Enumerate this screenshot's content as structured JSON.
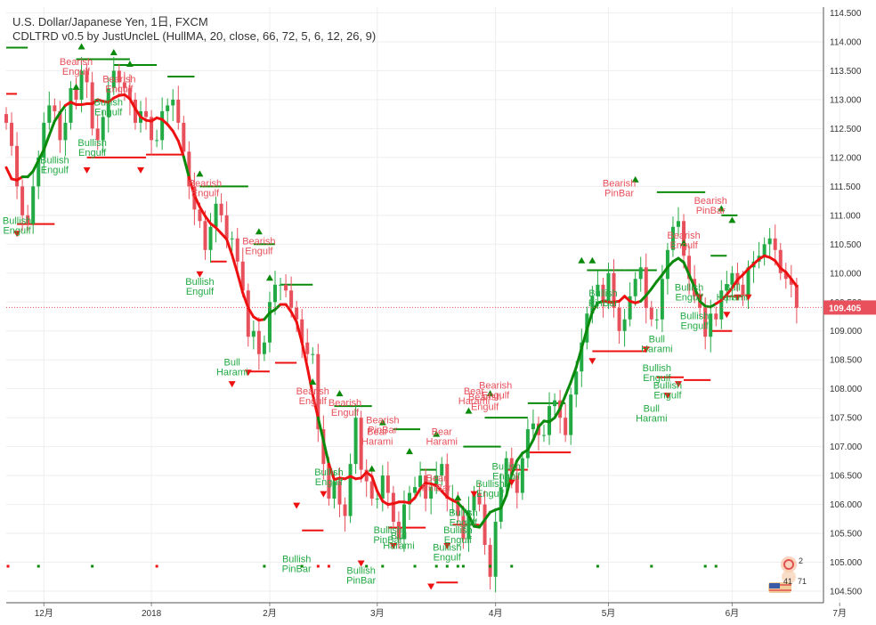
{
  "header": {
    "title": "U.S. Dollar/Japanese Yen, 1日, FXCM",
    "indicator": "CDLTRD v0.5 by JustUncleL (HullMA, 20, close, 66, 72, 5, 6, 12, 26, 9)"
  },
  "colors": {
    "bull": "#22aa44",
    "bear": "#e8505b",
    "hma_up": "#0a8a0a",
    "hma_down": "#ee1111",
    "price_line": "#e8505b",
    "grid": "#eeeeee",
    "axis_text": "#333333"
  },
  "chart_data": {
    "type": "candlestick",
    "symbol": "USDJPY",
    "timeframe": "1日",
    "source": "FXCM",
    "ylim": [
      104.3,
      114.6
    ],
    "y_ticks": [
      "104.500",
      "105.000",
      "105.500",
      "106.000",
      "106.500",
      "107.000",
      "107.500",
      "108.000",
      "108.500",
      "109.000",
      "109.500",
      "110.000",
      "110.500",
      "111.000",
      "111.500",
      "112.000",
      "112.500",
      "113.000",
      "113.500",
      "114.000",
      "114.500"
    ],
    "x_ticks": [
      {
        "label": "12月",
        "index": 7
      },
      {
        "label": "2018",
        "index": 27
      },
      {
        "label": "2月",
        "index": 49
      },
      {
        "label": "3月",
        "index": 69
      },
      {
        "label": "4月",
        "index": 91
      },
      {
        "label": "5月",
        "index": 112
      },
      {
        "label": "6月",
        "index": 135
      },
      {
        "label": "7月",
        "index": 155
      }
    ],
    "last_price": "109.405",
    "closes": [
      112.6,
      112.2,
      111.5,
      111.0,
      110.85,
      111.5,
      112.0,
      112.6,
      112.9,
      112.8,
      112.3,
      112.6,
      113.2,
      113.0,
      113.5,
      113.3,
      112.5,
      112.3,
      112.7,
      113.2,
      113.5,
      113.3,
      113.2,
      113.0,
      112.6,
      112.8,
      112.7,
      112.3,
      112.3,
      112.8,
      112.9,
      113.0,
      112.6,
      112.1,
      111.5,
      111.1,
      110.9,
      110.4,
      110.8,
      111.2,
      111.0,
      110.6,
      110.6,
      110.2,
      109.7,
      108.9,
      109.0,
      108.6,
      108.8,
      109.5,
      109.8,
      109.8,
      109.7,
      109.4,
      109.2,
      108.8,
      108.6,
      108.6,
      107.3,
      106.7,
      106.1,
      106.4,
      106.0,
      105.8,
      106.7,
      107.5,
      106.6,
      106.4,
      106.1,
      106.1,
      106.5,
      106.2,
      105.7,
      105.4,
      106.0,
      106.2,
      106.3,
      106.5,
      106.1,
      106.3,
      106.5,
      106.7,
      106.1,
      106.1,
      105.8,
      105.4,
      105.9,
      106.2,
      106.0,
      105.3,
      104.75,
      105.7,
      106.3,
      106.8,
      106.5,
      106.2,
      106.8,
      107.3,
      107.4,
      107.2,
      107.2,
      107.7,
      107.8,
      107.5,
      107.2,
      107.9,
      108.3,
      108.8,
      109.3,
      109.6,
      109.8,
      109.5,
      110.0,
      109.4,
      109.0,
      109.2,
      109.6,
      109.9,
      110.1,
      109.4,
      109.2,
      109.2,
      109.9,
      110.4,
      110.8,
      110.9,
      110.3,
      109.9,
      109.6,
      109.4,
      108.9,
      109.3,
      109.2,
      109.7,
      109.8,
      110.0,
      109.8,
      109.6,
      110.1,
      110.2,
      110.3,
      110.5,
      110.6,
      110.4,
      110.0,
      109.9,
      109.8,
      109.4
    ],
    "hma_up_segments": [
      [
        3,
        10
      ],
      [
        33,
        33
      ],
      [
        48,
        50
      ],
      [
        58,
        59
      ],
      [
        84,
        110
      ],
      [
        118,
        131
      ]
    ],
    "patterns": [
      {
        "label": [
          "Bullish",
          "Engulf"
        ],
        "index": 2,
        "price": 110.85,
        "side": "bull"
      },
      {
        "label": [
          "Bearish",
          "Engulf"
        ],
        "index": 13,
        "price": 113.6,
        "side": "bear"
      },
      {
        "label": [
          "Bullish",
          "Engulf"
        ],
        "index": 9,
        "price": 111.9,
        "side": "bull"
      },
      {
        "label": [
          "Bullish",
          "Engulf"
        ],
        "index": 19,
        "price": 112.9,
        "side": "bull"
      },
      {
        "label": [
          "Bullish",
          "Engulf"
        ],
        "index": 16,
        "price": 112.2,
        "side": "bull"
      },
      {
        "label": [
          "Bearish",
          "Engulf"
        ],
        "index": 21,
        "price": 113.3,
        "side": "bear"
      },
      {
        "label": [
          "Bearish",
          "Engulf"
        ],
        "index": 37,
        "price": 111.5,
        "side": "bear"
      },
      {
        "label": [
          "Bullish",
          "Engulf"
        ],
        "index": 36,
        "price": 109.8,
        "side": "bull"
      },
      {
        "label": [
          "Bearish",
          "Engulf"
        ],
        "index": 47,
        "price": 110.5,
        "side": "bear"
      },
      {
        "label": [
          "Bull",
          "Harami"
        ],
        "index": 42,
        "price": 108.4,
        "side": "bull"
      },
      {
        "label": [
          "Bearish",
          "Engulf"
        ],
        "index": 57,
        "price": 107.9,
        "side": "bear"
      },
      {
        "label": [
          "Bearish",
          "Engulf"
        ],
        "index": 63,
        "price": 107.7,
        "side": "bear"
      },
      {
        "label": [
          "Bullish",
          "Engulf"
        ],
        "index": 60,
        "price": 106.5,
        "side": "bull"
      },
      {
        "label": [
          "Bullish",
          "PinBar"
        ],
        "index": 54,
        "price": 105.0,
        "side": "bull"
      },
      {
        "label": [
          "Bearish",
          "PinBar"
        ],
        "index": 70,
        "price": 107.4,
        "side": "bear"
      },
      {
        "label": [
          "Bear",
          "Harami"
        ],
        "index": 69,
        "price": 107.2,
        "side": "bear"
      },
      {
        "label": [
          "Bullish",
          "PinBar"
        ],
        "index": 66,
        "price": 104.8,
        "side": "bull"
      },
      {
        "label": [
          "Bull",
          "Harami"
        ],
        "index": 73,
        "price": 105.4,
        "side": "bull"
      },
      {
        "label": [
          "Bullish",
          "PinBar"
        ],
        "index": 71,
        "price": 105.5,
        "side": "bull"
      },
      {
        "label": [
          "Bear",
          "Harami"
        ],
        "index": 81,
        "price": 107.2,
        "side": "bear"
      },
      {
        "label": [
          "Bear",
          "PinBar"
        ],
        "index": 80,
        "price": 106.4,
        "side": "bear"
      },
      {
        "label": [
          "Bullish",
          "Engulf"
        ],
        "index": 82,
        "price": 105.2,
        "side": "bull"
      },
      {
        "label": [
          "Bullish",
          "Engulf"
        ],
        "index": 84,
        "price": 105.5,
        "side": "bull"
      },
      {
        "label": [
          "Bullish",
          "Engulf"
        ],
        "index": 85,
        "price": 105.8,
        "side": "bull"
      },
      {
        "label": [
          "Bear",
          "Harami"
        ],
        "index": 87,
        "price": 107.9,
        "side": "bear"
      },
      {
        "label": [
          "Bearish",
          "Engulf"
        ],
        "index": 91,
        "price": 108.0,
        "side": "bear"
      },
      {
        "label": [
          "Bearish",
          "Engulf"
        ],
        "index": 89,
        "price": 107.8,
        "side": "bear"
      },
      {
        "label": [
          "Bullish",
          "Engulf"
        ],
        "index": 90,
        "price": 106.3,
        "side": "bull"
      },
      {
        "label": [
          "Bullish",
          "Engulf"
        ],
        "index": 93,
        "price": 106.6,
        "side": "bull"
      },
      {
        "label": [
          "Bearish",
          "PinBar"
        ],
        "index": 114,
        "price": 111.5,
        "side": "bear"
      },
      {
        "label": [
          "Bullish",
          "PinBar"
        ],
        "index": 111,
        "price": 109.6,
        "side": "bull"
      },
      {
        "label": [
          "Bearish",
          "Engulf"
        ],
        "index": 126,
        "price": 110.6,
        "side": "bear"
      },
      {
        "label": [
          "Bearish",
          "PinBar"
        ],
        "index": 131,
        "price": 111.2,
        "side": "bear"
      },
      {
        "label": [
          "Bullish",
          "Engulf"
        ],
        "index": 127,
        "price": 109.7,
        "side": "bull"
      },
      {
        "label": [
          "Bullish",
          "Engulf"
        ],
        "index": 128,
        "price": 109.2,
        "side": "bull"
      },
      {
        "label": [
          "Bullish",
          "Engulf"
        ],
        "index": 123,
        "price": 108.0,
        "side": "bull"
      },
      {
        "label": [
          "Bullish",
          "Engulf"
        ],
        "index": 121,
        "price": 108.3,
        "side": "bull"
      },
      {
        "label": [
          "Bull",
          "Harami"
        ],
        "index": 121,
        "price": 108.8,
        "side": "bull"
      },
      {
        "label": [
          "Bull",
          "Harami"
        ],
        "index": 120,
        "price": 107.6,
        "side": "bull"
      },
      {
        "label": [
          "Bull",
          "Harami"
        ],
        "index": 135,
        "price": 109.7,
        "side": "bull"
      }
    ],
    "up_markers": [
      [
        13,
        113.2
      ],
      [
        14,
        113.9
      ],
      [
        20,
        113.8
      ],
      [
        23,
        113.6
      ],
      [
        36,
        111.7
      ],
      [
        47,
        110.7
      ],
      [
        49,
        109.9
      ],
      [
        57,
        108.1
      ],
      [
        62,
        107.9
      ],
      [
        68,
        106.6
      ],
      [
        70,
        107.4
      ],
      [
        75,
        106.9
      ],
      [
        80,
        107.2
      ],
      [
        84,
        106.1
      ],
      [
        86,
        107.6
      ],
      [
        90,
        107.9
      ],
      [
        107,
        110.2
      ],
      [
        109,
        110.2
      ],
      [
        117,
        111.6
      ],
      [
        126,
        110.5
      ],
      [
        133,
        111.1
      ],
      [
        135,
        110.9
      ]
    ],
    "down_markers": [
      [
        2,
        110.7
      ],
      [
        15,
        111.8
      ],
      [
        25,
        111.8
      ],
      [
        36,
        110.0
      ],
      [
        42,
        108.1
      ],
      [
        45,
        108.3
      ],
      [
        54,
        106.0
      ],
      [
        59,
        106.2
      ],
      [
        66,
        105.0
      ],
      [
        72,
        105.3
      ],
      [
        79,
        104.6
      ],
      [
        82,
        105.3
      ],
      [
        87,
        106.2
      ],
      [
        94,
        106.4
      ],
      [
        109,
        108.5
      ],
      [
        119,
        108.7
      ],
      [
        123,
        107.9
      ],
      [
        125,
        108.1
      ],
      [
        129,
        109.6
      ],
      [
        134,
        109.3
      ],
      [
        136,
        109.6
      ],
      [
        138,
        109.6
      ]
    ],
    "levels": [
      {
        "from": 0,
        "to": 4,
        "price": 113.9,
        "side": "bull"
      },
      {
        "from": 0,
        "to": 2,
        "price": 113.1,
        "side": "bear"
      },
      {
        "from": 2,
        "to": 9,
        "price": 110.85,
        "side": "bear"
      },
      {
        "from": 13,
        "to": 23,
        "price": 113.7,
        "side": "bull"
      },
      {
        "from": 20,
        "to": 28,
        "price": 113.6,
        "side": "bull"
      },
      {
        "from": 30,
        "to": 35,
        "price": 113.4,
        "side": "bull"
      },
      {
        "from": 15,
        "to": 26,
        "price": 112.0,
        "side": "bear"
      },
      {
        "from": 26,
        "to": 33,
        "price": 112.05,
        "side": "bear"
      },
      {
        "from": 36,
        "to": 45,
        "price": 111.5,
        "side": "bull"
      },
      {
        "from": 38,
        "to": 41,
        "price": 110.2,
        "side": "bear"
      },
      {
        "from": 46,
        "to": 50,
        "price": 110.5,
        "side": "bull"
      },
      {
        "from": 51,
        "to": 57,
        "price": 109.8,
        "side": "bull"
      },
      {
        "from": 45,
        "to": 49,
        "price": 108.3,
        "side": "bear"
      },
      {
        "from": 50,
        "to": 54,
        "price": 108.45,
        "side": "bear"
      },
      {
        "from": 55,
        "to": 59,
        "price": 105.55,
        "side": "bear"
      },
      {
        "from": 61,
        "to": 68,
        "price": 107.7,
        "side": "bull"
      },
      {
        "from": 72,
        "to": 77,
        "price": 107.3,
        "side": "bull"
      },
      {
        "from": 77,
        "to": 80,
        "price": 106.6,
        "side": "bull"
      },
      {
        "from": 71,
        "to": 78,
        "price": 105.6,
        "side": "bear"
      },
      {
        "from": 80,
        "to": 84,
        "price": 104.65,
        "side": "bear"
      },
      {
        "from": 83,
        "to": 88,
        "price": 105.65,
        "side": "bear"
      },
      {
        "from": 85,
        "to": 92,
        "price": 107.0,
        "side": "bull"
      },
      {
        "from": 89,
        "to": 97,
        "price": 107.5,
        "side": "bull"
      },
      {
        "from": 97,
        "to": 104,
        "price": 107.75,
        "side": "bull"
      },
      {
        "from": 93,
        "to": 97,
        "price": 106.6,
        "side": "bear"
      },
      {
        "from": 97,
        "to": 105,
        "price": 106.9,
        "side": "bear"
      },
      {
        "from": 108,
        "to": 115,
        "price": 110.05,
        "side": "bull"
      },
      {
        "from": 115,
        "to": 121,
        "price": 110.05,
        "side": "bull"
      },
      {
        "from": 121,
        "to": 130,
        "price": 111.4,
        "side": "bull"
      },
      {
        "from": 109,
        "to": 119,
        "price": 108.65,
        "side": "bear"
      },
      {
        "from": 121,
        "to": 126,
        "price": 108.2,
        "side": "bear"
      },
      {
        "from": 126,
        "to": 131,
        "price": 108.15,
        "side": "bear"
      },
      {
        "from": 131,
        "to": 134,
        "price": 110.3,
        "side": "bull"
      },
      {
        "from": 133,
        "to": 136,
        "price": 111.0,
        "side": "bull"
      },
      {
        "from": 131,
        "to": 135,
        "price": 109.0,
        "side": "bear"
      },
      {
        "from": 134,
        "to": 137,
        "price": 109.6,
        "side": "bear"
      }
    ],
    "bottom_dots": [
      {
        "index": -1,
        "side": "bear"
      },
      {
        "index": 6,
        "side": "bull"
      },
      {
        "index": 16,
        "side": "bull"
      },
      {
        "index": 28,
        "side": "bear"
      },
      {
        "index": 48,
        "side": "bull"
      },
      {
        "index": 55,
        "side": "bull"
      },
      {
        "index": 58,
        "side": "bear"
      },
      {
        "index": 60,
        "side": "bear"
      },
      {
        "index": 67,
        "side": "bull"
      },
      {
        "index": 70,
        "side": "bull"
      },
      {
        "index": 76,
        "side": "bull"
      },
      {
        "index": 80,
        "side": "bull"
      },
      {
        "index": 82,
        "side": "bull"
      },
      {
        "index": 84,
        "side": "bull"
      },
      {
        "index": 85,
        "side": "bull"
      },
      {
        "index": 90,
        "side": "bull"
      },
      {
        "index": 94,
        "side": "bull"
      },
      {
        "index": 110,
        "side": "bull"
      },
      {
        "index": 120,
        "side": "bull"
      },
      {
        "index": 130,
        "side": "bull"
      },
      {
        "index": 132,
        "side": "bull"
      }
    ]
  },
  "logo": {
    "numbers": [
      "2",
      "41",
      "71"
    ]
  }
}
